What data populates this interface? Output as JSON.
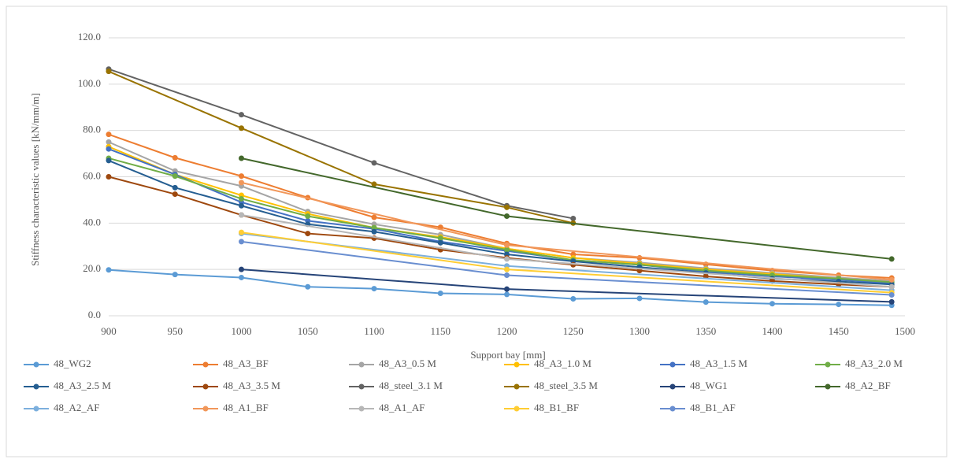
{
  "chart_data": {
    "type": "line",
    "x_label": "Support bay [mm]",
    "y_label": "Stiffness characteristic values [kN/mm/m]",
    "xlim": [
      900,
      1500
    ],
    "xticks": [
      900,
      950,
      1000,
      1050,
      1100,
      1150,
      1200,
      1250,
      1300,
      1350,
      1400,
      1450,
      1500
    ],
    "ylim": [
      0,
      120
    ],
    "yticks": [
      {
        "value": 0,
        "label": "0.0"
      },
      {
        "value": 20,
        "label": "20.0"
      },
      {
        "value": 40,
        "label": "40.0"
      },
      {
        "value": 60,
        "label": "60.0"
      },
      {
        "value": 80,
        "label": "80.0"
      },
      {
        "value": 100,
        "label": "100.0"
      },
      {
        "value": 120,
        "label": "120.0"
      }
    ],
    "grid": true,
    "series": [
      {
        "name": "48_WG2",
        "color": "#5b9bd5",
        "x": [
          900,
          950,
          1000,
          1050,
          1100,
          1150,
          1200,
          1250,
          1300,
          1350,
          1400,
          1450,
          1490
        ],
        "values": [
          19.8,
          17.8,
          16.5,
          12.5,
          11.7,
          9.7,
          9.2,
          7.3,
          7.5,
          5.9,
          5.2,
          4.9,
          4.5
        ]
      },
      {
        "name": "48_A3_BF",
        "color": "#ed7d31",
        "x": [
          900,
          950,
          1000,
          1050,
          1100,
          1150,
          1200,
          1250,
          1300,
          1350,
          1400,
          1450,
          1490
        ],
        "values": [
          78.3,
          68.2,
          60.3,
          51,
          42.5,
          38.2,
          31.2,
          26.5,
          25,
          22.2,
          19.5,
          17.5,
          16.3
        ]
      },
      {
        "name": "48_A3_0.5 M",
        "color": "#a5a5a5",
        "x": [
          900,
          950,
          1000,
          1050,
          1100,
          1150,
          1200,
          1250,
          1300,
          1350,
          1400,
          1450,
          1490
        ],
        "values": [
          75,
          62.5,
          56,
          45,
          39.5,
          35,
          29,
          25,
          23,
          20.5,
          18.5,
          16.5,
          15
        ]
      },
      {
        "name": "48_A3_1.0 M",
        "color": "#ffc000",
        "x": [
          900,
          950,
          1000,
          1050,
          1100,
          1150,
          1200,
          1250,
          1300,
          1350,
          1400,
          1450,
          1490
        ],
        "values": [
          73,
          61,
          52,
          44,
          38,
          34,
          29,
          25,
          22.5,
          20,
          18,
          16,
          14.5
        ]
      },
      {
        "name": "48_A3_1.5 M",
        "color": "#4472c4",
        "x": [
          900,
          950,
          1000,
          1050,
          1100,
          1150,
          1200,
          1250,
          1300,
          1350,
          1400,
          1450,
          1490
        ],
        "values": [
          72,
          61,
          49,
          41,
          37.5,
          32,
          28,
          24,
          22,
          19,
          17,
          15.5,
          14
        ]
      },
      {
        "name": "48_A3_2.0 M",
        "color": "#70ad47",
        "x": [
          900,
          950,
          1000,
          1050,
          1100,
          1150,
          1200,
          1250,
          1300,
          1350,
          1400,
          1450,
          1490
        ],
        "values": [
          68,
          60.3,
          50.5,
          43,
          38,
          33.5,
          28.5,
          24,
          22,
          19.5,
          17.5,
          16,
          14.5
        ]
      },
      {
        "name": "48_A3_2.5 M",
        "color": "#255e91",
        "x": [
          900,
          950,
          1000,
          1050,
          1100,
          1150,
          1200,
          1250,
          1300,
          1350,
          1400,
          1450,
          1490
        ],
        "values": [
          67,
          55.3,
          47.5,
          39.5,
          36.3,
          31.5,
          26.5,
          23.5,
          21,
          18.5,
          16,
          14.8,
          13.5
        ]
      },
      {
        "name": "48_A3_3.5 M",
        "color": "#9e480e",
        "x": [
          900,
          950,
          1000,
          1050,
          1100,
          1150,
          1200,
          1250,
          1300,
          1350,
          1400,
          1450,
          1490
        ],
        "values": [
          60,
          52.5,
          43.5,
          35.5,
          33.5,
          28.5,
          25,
          22,
          19.5,
          17,
          15,
          13.5,
          12.5
        ]
      },
      {
        "name": "48_steel_3.1 M",
        "color": "#636363",
        "x": [
          900,
          1000,
          1100,
          1200,
          1250
        ],
        "values": [
          106.5,
          86.8,
          66,
          47.5,
          42
        ]
      },
      {
        "name": "48_steel_3.5 M",
        "color": "#997300",
        "x": [
          900,
          1000,
          1100,
          1200,
          1250
        ],
        "values": [
          105.5,
          81,
          56.8,
          46.8,
          40
        ]
      },
      {
        "name": "48_WG1",
        "color": "#264478",
        "x": [
          1000,
          1200,
          1490
        ],
        "values": [
          20,
          11.5,
          6
        ]
      },
      {
        "name": "48_A2_BF",
        "color": "#43682b",
        "x": [
          1000,
          1200,
          1490
        ],
        "values": [
          68,
          43,
          24.5
        ]
      },
      {
        "name": "48_A2_AF",
        "color": "#7cafdd",
        "x": [
          1000,
          1200,
          1490
        ],
        "values": [
          35.5,
          21.5,
          11
        ]
      },
      {
        "name": "48_A1_BF",
        "color": "#f1975a",
        "x": [
          1000,
          1200,
          1490
        ],
        "values": [
          57.5,
          30.5,
          15.5
        ]
      },
      {
        "name": "48_A1_AF",
        "color": "#b7b7b7",
        "x": [
          1000,
          1200,
          1490
        ],
        "values": [
          43.5,
          24.5,
          12.5
        ]
      },
      {
        "name": "48_B1_BF",
        "color": "#ffcd33",
        "x": [
          1000,
          1200,
          1490
        ],
        "values": [
          36,
          20,
          10
        ]
      },
      {
        "name": "48_B1_AF",
        "color": "#698ed0",
        "x": [
          1000,
          1200,
          1490
        ],
        "values": [
          32,
          17.5,
          9
        ]
      }
    ]
  }
}
